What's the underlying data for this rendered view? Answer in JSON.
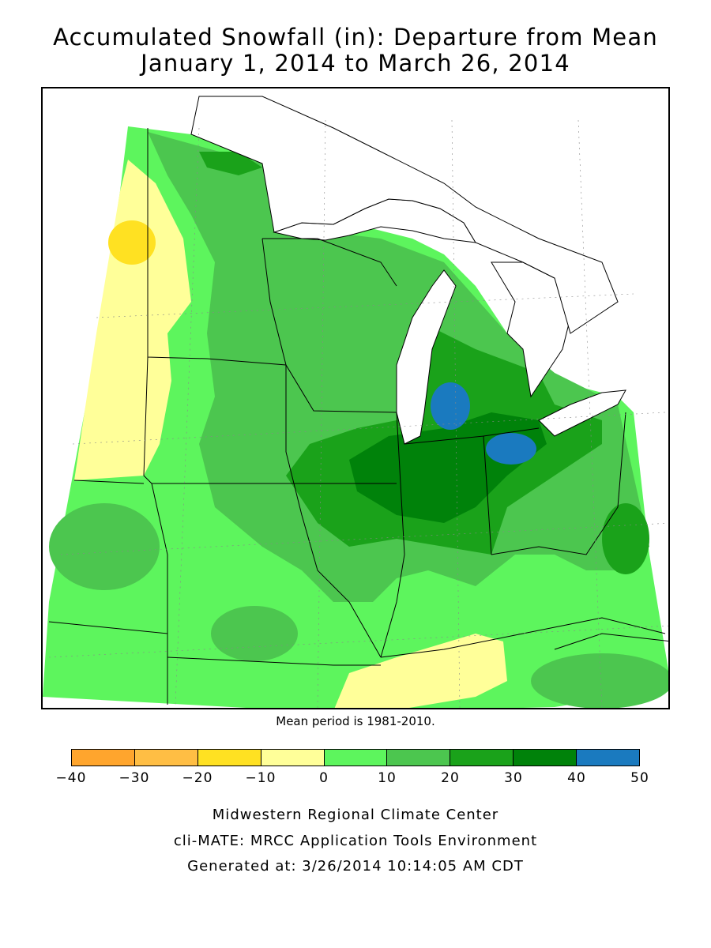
{
  "title": {
    "line1": "Accumulated Snowfall (in): Departure from Mean",
    "line2": "January 1, 2014 to March 26, 2014"
  },
  "map": {
    "region": "Midwestern United States (Upper Midwest and Great Lakes)",
    "note": "Mean period is 1981-2010.",
    "water_color": "#ffffff",
    "pattern_summary": "Positive departures over most of region; largest (30-50 in) over Lower Michigan, northern Indiana and northwest Ohio; negative departures (-10 to -20) in western Minnesota and a band across southern Missouri/Kentucky border."
  },
  "legend": {
    "ticks": [
      "−40",
      "−30",
      "−20",
      "−10",
      "0",
      "10",
      "20",
      "30",
      "40",
      "50"
    ],
    "bins": [
      {
        "range": "-40 to -30",
        "color": "#ffa52d"
      },
      {
        "range": "-30 to -20",
        "color": "#ffbe44"
      },
      {
        "range": "-20 to -10",
        "color": "#ffe122"
      },
      {
        "range": "-10 to 0",
        "color": "#ffff99"
      },
      {
        "range": "0 to 10",
        "color": "#5df55d"
      },
      {
        "range": "10 to 20",
        "color": "#4cc64f"
      },
      {
        "range": "20 to 30",
        "color": "#1aa21a"
      },
      {
        "range": "30 to 40",
        "color": "#00820a"
      },
      {
        "range": "40 to 50",
        "color": "#1a7abf"
      }
    ]
  },
  "footer": {
    "line1": "Midwestern Regional Climate Center",
    "line2": "cli-MATE: MRCC Application Tools Environment",
    "line3": "Generated at: 3/26/2014 10:14:05 AM CDT"
  }
}
